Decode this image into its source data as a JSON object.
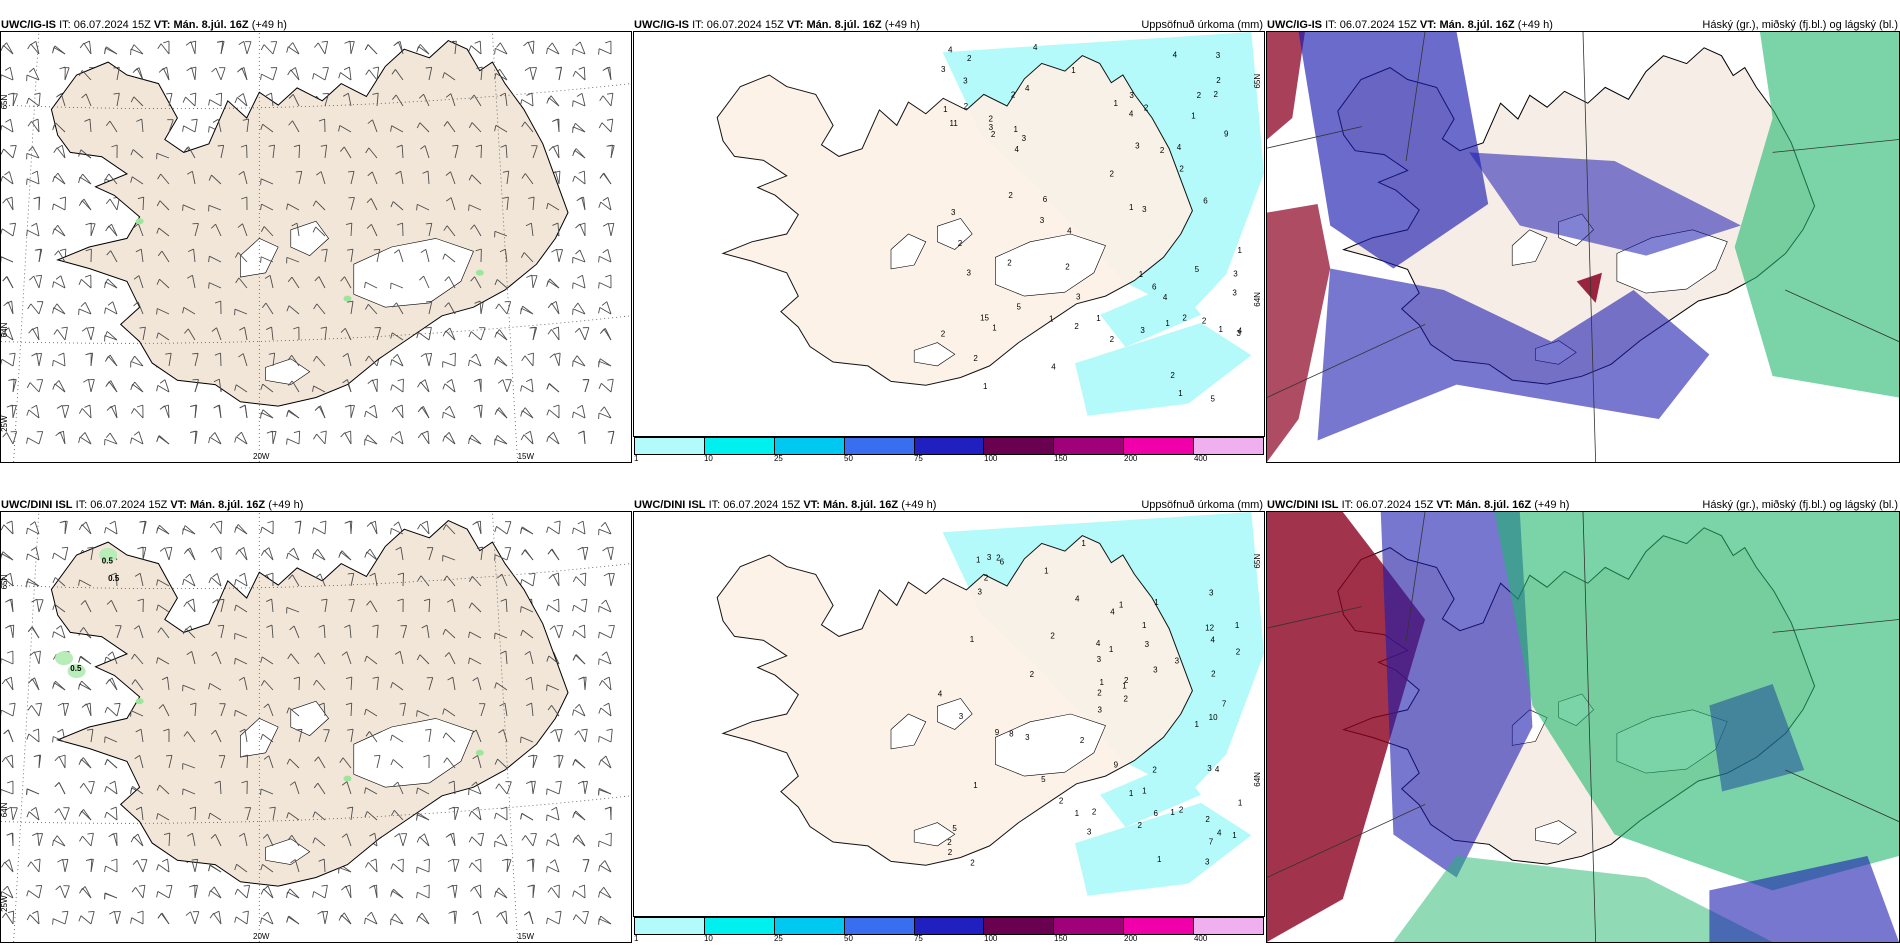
{
  "panels": [
    {
      "id": "tl",
      "model": "UWC/IG-IS",
      "it_label": "IT:",
      "it": "06.07.2024 15Z",
      "vt_label": "VT:",
      "vt": "Mán. 8.júl. 16Z",
      "lead": "(+49 h)",
      "right_title": "",
      "lat_labels": [
        "65N",
        "64N",
        "25W"
      ],
      "lon_labels": [
        "20W",
        "15W"
      ],
      "contour_labels": []
    },
    {
      "id": "tm",
      "model": "UWC/IG-IS",
      "it_label": "IT:",
      "it": "06.07.2024 15Z",
      "vt_label": "VT:",
      "vt": "Mán. 8.júl. 16Z",
      "lead": "(+49 h)",
      "right_title": "Uppsöfnuð úrkoma (mm)",
      "lat_labels": [
        "65N",
        "64N"
      ],
      "lon_labels": []
    },
    {
      "id": "tr",
      "model": "UWC/IG-IS",
      "it_label": "IT:",
      "it": "06.07.2024 15Z",
      "vt_label": "VT:",
      "vt": "Mán. 8.júl. 16Z",
      "lead": "(+49 h)",
      "right_title": "Háský (gr.), miðský (fj.bl.) og lágský (bl.)"
    },
    {
      "id": "bl",
      "model": "UWC/DINI ISL",
      "it_label": "IT:",
      "it": "06.07.2024 15Z",
      "vt_label": "VT:",
      "vt": "Mán. 8.júl. 16Z",
      "lead": "(+49 h)",
      "right_title": "",
      "lat_labels": [
        "65N",
        "64N",
        "25W"
      ],
      "lon_labels": [
        "20W",
        "15W"
      ],
      "contour_labels": [
        "0.5",
        "0.5",
        "0.5"
      ]
    },
    {
      "id": "bm",
      "model": "UWC/DINI ISL",
      "it_label": "IT:",
      "it": "06.07.2024 15Z",
      "vt_label": "VT:",
      "vt": "Mán. 8.júl. 16Z",
      "lead": "(+49 h)",
      "right_title": "Uppsöfnuð úrkoma (mm)",
      "lat_labels": [
        "65N",
        "64N"
      ],
      "lon_labels": []
    },
    {
      "id": "br",
      "model": "UWC/DINI ISL",
      "it_label": "IT:",
      "it": "06.07.2024 15Z",
      "vt_label": "VT:",
      "vt": "Mán. 8.júl. 16Z",
      "lead": "(+49 h)",
      "right_title": "Háský (gr.), miðský (fj.bl.) og lágský (bl.)"
    }
  ],
  "legend": {
    "colors": [
      "#b3fbfb",
      "#00f0f0",
      "#00c8f0",
      "#3a6ef0",
      "#2020c0",
      "#6a0050",
      "#a0007a",
      "#f000a8",
      "#f0b0f0"
    ],
    "labels": [
      "1",
      "10",
      "25",
      "50",
      "75",
      "100",
      "150",
      "200",
      "400"
    ]
  },
  "colors": {
    "land": "#f2e6d8",
    "land_precip_panel": "#fdf1e6",
    "precip": "#b4fafa",
    "wind": "#5a5a5a",
    "high_cloud": "#22b86e",
    "mid_cloud": "#1c1cb0",
    "low_cloud": "#8a0020"
  },
  "precip_numbers_top": [
    "3",
    "3",
    "1",
    "2",
    "3",
    "4",
    "5",
    "4",
    "4",
    "2",
    "2",
    "2",
    "2",
    "6",
    "5",
    "4",
    "3",
    "2",
    "3",
    "4",
    "5",
    "11",
    "3",
    "1",
    "2",
    "9",
    "15",
    "2",
    "1",
    "2",
    "1",
    "1",
    "2",
    "3",
    "2",
    "4",
    "3",
    "2",
    "1",
    "2",
    "3",
    "1",
    "2",
    "2",
    "4",
    "3",
    "1",
    "2",
    "3",
    "1",
    "3",
    "2",
    "4",
    "1",
    "3",
    "2",
    "1",
    "2",
    "1",
    "3",
    "1",
    "2",
    "4",
    "2",
    "1",
    "2",
    "3",
    "6",
    "1",
    "6",
    "4",
    "4",
    "2",
    "3"
  ],
  "precip_numbers_bottom": [
    "1",
    "2",
    "3",
    "1",
    "1",
    "2",
    "3",
    "3",
    "4",
    "5",
    "6",
    "9",
    "10",
    "3",
    "1",
    "2",
    "3",
    "12",
    "7",
    "2",
    "9",
    "1",
    "2",
    "2",
    "2",
    "4",
    "1",
    "2",
    "3",
    "3",
    "1",
    "2",
    "1",
    "4",
    "2",
    "4",
    "5",
    "2",
    "2",
    "1",
    "1",
    "2",
    "2",
    "1",
    "3",
    "7",
    "1",
    "2",
    "1",
    "8",
    "1",
    "3",
    "1",
    "4",
    "4",
    "3",
    "3",
    "3",
    "6",
    "4",
    "3",
    "1",
    "1",
    "2",
    "2",
    "1",
    "1",
    "2",
    "1",
    "2"
  ]
}
